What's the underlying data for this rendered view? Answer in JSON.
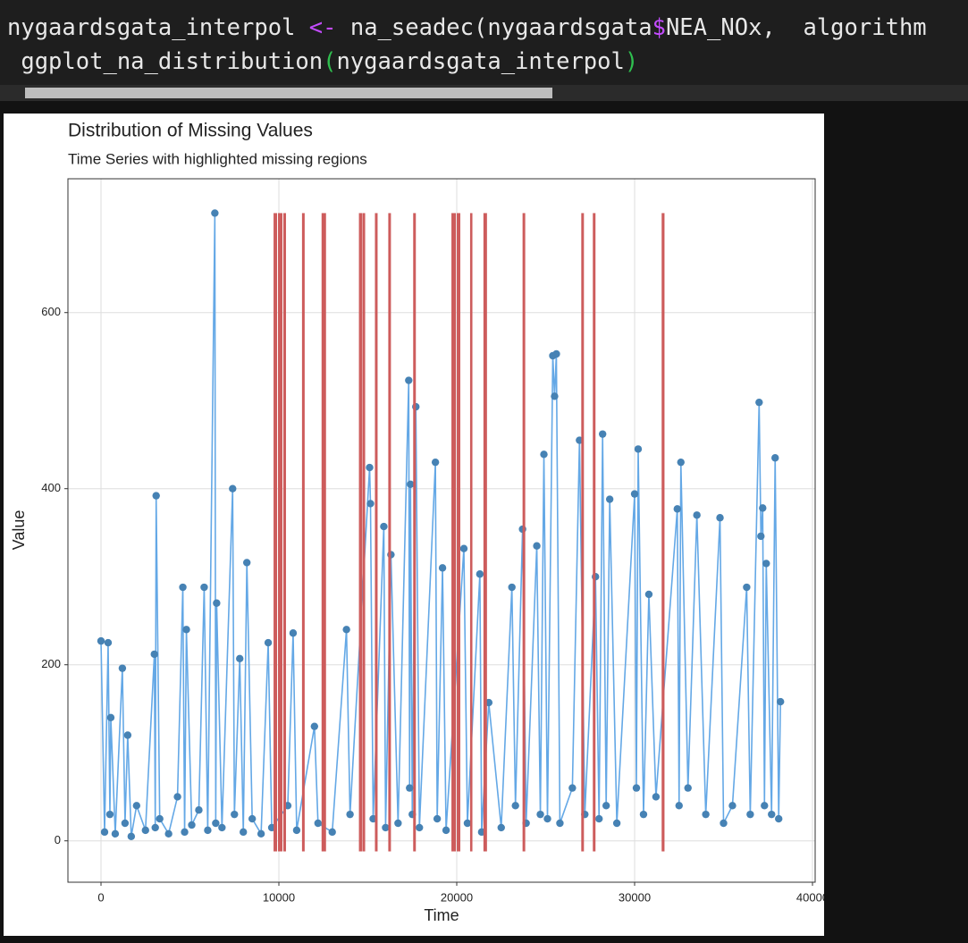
{
  "code": {
    "lines": [
      [
        {
          "text": "nygaardsgata_interpol ",
          "color": "#e8e8e8"
        },
        {
          "text": "<-",
          "color": "#c34cff"
        },
        {
          "text": " na_seadec(nygaardsgata",
          "color": "#e8e8e8"
        },
        {
          "text": "$",
          "color": "#c34cff"
        },
        {
          "text": "NEA_NOx,  algorithm",
          "color": "#e8e8e8"
        }
      ],
      [
        {
          "text": " ggplot_na_distribution",
          "color": "#e8e8e8"
        },
        {
          "text": "(",
          "color": "#2fbf4f"
        },
        {
          "text": "nygaardsgata_interpol",
          "color": "#e8e8e8"
        },
        {
          "text": ")",
          "color": "#2fbf4f"
        }
      ]
    ]
  },
  "chart_data": {
    "type": "line",
    "title": "Distribution of Missing Values",
    "subtitle": "Time Series with highlighted missing regions",
    "x_label": "Time",
    "y_label": "Value",
    "xlim": [
      -1860,
      40150
    ],
    "ylim": [
      -47,
      752
    ],
    "xticks": [
      0,
      10000,
      20000,
      30000,
      40000
    ],
    "yticks": [
      0,
      200,
      400,
      600
    ],
    "grid": true,
    "missing_color": "#cd5c5c",
    "missing_regions": [
      [
        9700,
        9900
      ],
      [
        9950,
        10200
      ],
      [
        10250,
        10400
      ],
      [
        11300,
        11450
      ],
      [
        12400,
        12650
      ],
      [
        14500,
        14700
      ],
      [
        14720,
        14850
      ],
      [
        15400,
        15550
      ],
      [
        16150,
        16300
      ],
      [
        17550,
        17700
      ],
      [
        19700,
        19950
      ],
      [
        20000,
        20200
      ],
      [
        20750,
        20880
      ],
      [
        21500,
        21700
      ],
      [
        23700,
        23850
      ],
      [
        27000,
        27150
      ],
      [
        27650,
        27800
      ],
      [
        31520,
        31680
      ]
    ],
    "missing_ylim": [
      -12,
      713
    ],
    "series": [
      {
        "name": "Value",
        "color": "#4682b4",
        "line_color": "#64a8e6",
        "x": [
          0,
          200,
          400,
          500,
          550,
          800,
          1200,
          1350,
          1500,
          1700,
          2000,
          2500,
          3000,
          3050,
          3100,
          3300,
          3800,
          4300,
          4600,
          4700,
          4800,
          5100,
          5500,
          5800,
          6000,
          6400,
          6450,
          6500,
          6800,
          7400,
          7500,
          7800,
          8000,
          8200,
          8500,
          9000,
          9400,
          9600,
          10500,
          10800,
          11000,
          12000,
          12200,
          13000,
          13800,
          14000,
          15100,
          15150,
          15300,
          15900,
          16000,
          16300,
          16700,
          17300,
          17350,
          17400,
          17500,
          17700,
          17900,
          18800,
          18900,
          19200,
          19400,
          20400,
          20600,
          21300,
          21400,
          21800,
          22500,
          23100,
          23300,
          23700,
          23900,
          24500,
          24700,
          24900,
          25100,
          25400,
          25500,
          25600,
          25800,
          26500,
          26900,
          27200,
          27800,
          28000,
          28200,
          28400,
          28600,
          29000,
          30000,
          30100,
          30200,
          30500,
          30800,
          31200,
          32400,
          32500,
          32600,
          33000,
          33500,
          34000,
          34800,
          35000,
          35500,
          36300,
          36500,
          37000,
          37100,
          37200,
          37300,
          37400,
          37700,
          37900,
          38100,
          38200
        ],
        "values": [
          227,
          10,
          225,
          30,
          140,
          8,
          196,
          20,
          120,
          5,
          40,
          12,
          212,
          15,
          392,
          25,
          8,
          50,
          288,
          10,
          240,
          18,
          35,
          288,
          12,
          713,
          20,
          270,
          15,
          400,
          30,
          207,
          10,
          316,
          25,
          8,
          225,
          15,
          40,
          236,
          12,
          130,
          20,
          10,
          240,
          30,
          424,
          383,
          25,
          357,
          15,
          325,
          20,
          523,
          60,
          405,
          30,
          493,
          15,
          430,
          25,
          310,
          12,
          332,
          20,
          303,
          10,
          157,
          15,
          288,
          40,
          354,
          20,
          335,
          30,
          439,
          25,
          551,
          505,
          553,
          20,
          60,
          455,
          30,
          300,
          25,
          462,
          40,
          388,
          20,
          394,
          60,
          445,
          30,
          280,
          50,
          377,
          40,
          430,
          60,
          370,
          30,
          367,
          20,
          40,
          288,
          30,
          498,
          346,
          378,
          40,
          315,
          30,
          435,
          25,
          158
        ]
      }
    ]
  }
}
